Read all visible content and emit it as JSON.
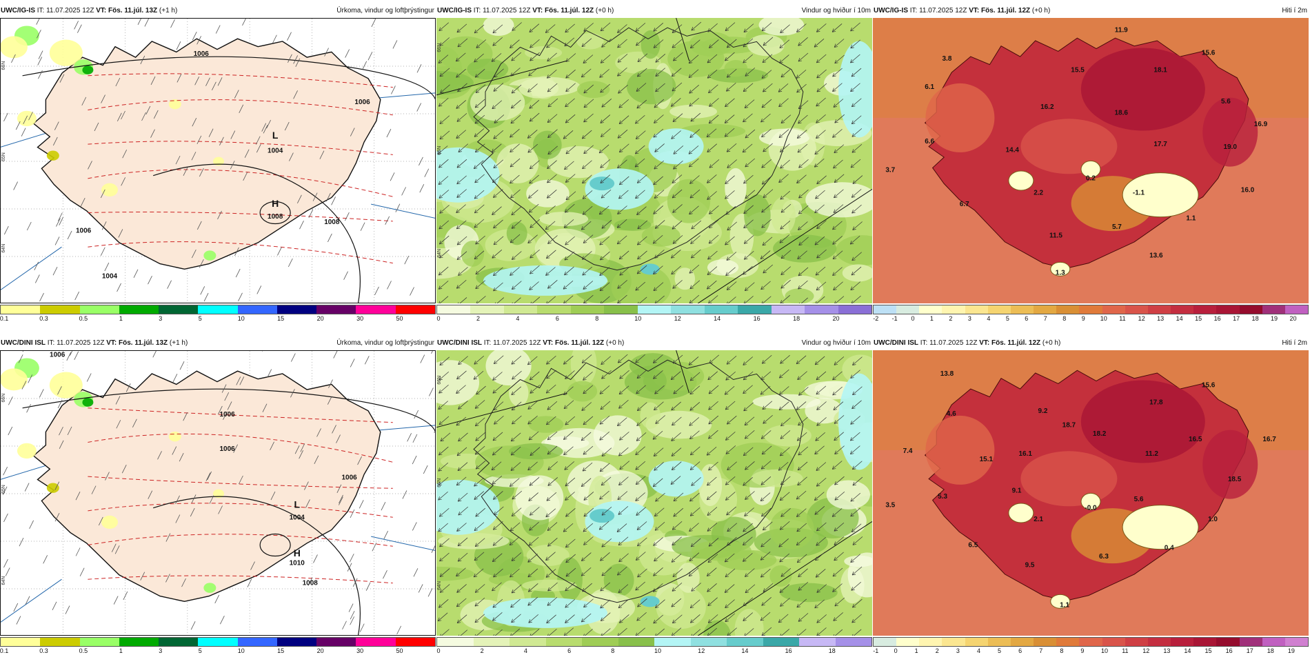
{
  "panels": [
    {
      "row": 0,
      "col": 0,
      "model": "UWC/IG-IS",
      "it": "IT: 11.07.2025 12Z",
      "vt": "VT: Fös. 11.júl. 13Z",
      "lead": "(+1 h)",
      "title": "Úrkoma, vindur og loftþrýstingur",
      "type": "precip",
      "lat_labels": [
        "66N",
        "65N",
        "64N"
      ],
      "map_labels": [
        {
          "text": "L"
        },
        {
          "text": "1004"
        },
        {
          "text": "H"
        },
        {
          "text": "1008"
        },
        {
          "text": "1006"
        },
        {
          "text": "1006"
        },
        {
          "text": "1006"
        },
        {
          "text": "1004"
        },
        {
          "text": "1008"
        }
      ],
      "colorbar": {
        "colors": [
          "#ffff99",
          "#cccc00",
          "#99ff66",
          "#00aa00",
          "#006633",
          "#00ffff",
          "#3366ff",
          "#000080",
          "#660066",
          "#ff0099",
          "#ff0000"
        ],
        "ticks": [
          "0.1",
          "0.3",
          "0.5",
          "1",
          "3",
          "5",
          "10",
          "15",
          "20",
          "30",
          "50"
        ]
      }
    },
    {
      "row": 0,
      "col": 1,
      "model": "UWC/IG-IS",
      "it": "IT: 11.07.2025 12Z",
      "vt": "VT: Fös. 11.júl. 12Z",
      "lead": "(+0 h)",
      "title": "Vindur og hviður í 10m",
      "type": "wind",
      "lat_labels": [
        "66N",
        "65N",
        "64N"
      ],
      "colorbar": {
        "colors": [
          "#f5fbe0",
          "#e4f3b8",
          "#d0e993",
          "#b8dc6e",
          "#9fcd55",
          "#88c04a",
          "#b3f5f5",
          "#8fe0e0",
          "#66cccc",
          "#3aa8a8",
          "#c7b8f5",
          "#a590e8",
          "#8a6fd6"
        ],
        "ticks": [
          "0",
          "2",
          "4",
          "6",
          "8",
          "10",
          "12",
          "14",
          "16",
          "18",
          "20"
        ]
      }
    },
    {
      "row": 0,
      "col": 2,
      "model": "UWC/IG-IS",
      "it": "IT: 11.07.2025 12Z",
      "vt": "VT: Fös. 11.júl. 12Z",
      "lead": "(+0 h)",
      "title": "Hiti í 2m",
      "type": "temp",
      "map_labels": [
        {
          "text": "11.9"
        },
        {
          "text": "3.8"
        },
        {
          "text": "15.5"
        },
        {
          "text": "15.6"
        },
        {
          "text": "6.1"
        },
        {
          "text": "18.1"
        },
        {
          "text": "16.2"
        },
        {
          "text": "18.6"
        },
        {
          "text": "5.6"
        },
        {
          "text": "16.9"
        },
        {
          "text": "6.6"
        },
        {
          "text": "14.4"
        },
        {
          "text": "17.7"
        },
        {
          "text": "19.0"
        },
        {
          "text": "3.7"
        },
        {
          "text": "0.2"
        },
        {
          "text": "16.0"
        },
        {
          "text": "2.2"
        },
        {
          "text": "-1.1"
        },
        {
          "text": "6.7"
        },
        {
          "text": "1.1"
        },
        {
          "text": "5.7"
        },
        {
          "text": "11.5"
        },
        {
          "text": "13.6"
        },
        {
          "text": "1.3"
        }
      ],
      "colorbar": {
        "colors": [
          "#bde0f5",
          "#d8ece0",
          "#ffffcc",
          "#fff5b0",
          "#fbe690",
          "#f5d470",
          "#ecbd55",
          "#e3a842",
          "#d98f35",
          "#e07a3a",
          "#e0664a",
          "#d9544a",
          "#cf3f44",
          "#c42e40",
          "#b81f3c",
          "#a91535",
          "#950c2d",
          "#a0307a",
          "#c060c0"
        ],
        "ticks": [
          "-2",
          "-1",
          "0",
          "1",
          "2",
          "3",
          "4",
          "5",
          "6",
          "7",
          "8",
          "9",
          "10",
          "11",
          "12",
          "13",
          "14",
          "15",
          "16",
          "17",
          "18",
          "19",
          "20"
        ]
      }
    },
    {
      "row": 1,
      "col": 0,
      "model": "UWC/DINI ISL",
      "it": "IT: 11.07.2025 12Z",
      "vt": "VT: Fös. 11.júl. 13Z",
      "lead": "(+1 h)",
      "title": "Úrkoma, vindur og loftþrýstingur",
      "type": "precip",
      "lat_labels": [
        "66N",
        "65N",
        "64N"
      ],
      "map_labels": [
        {
          "text": "L"
        },
        {
          "text": "1004"
        },
        {
          "text": "H"
        },
        {
          "text": "1010"
        },
        {
          "text": "1006"
        },
        {
          "text": "1006"
        },
        {
          "text": "1006"
        },
        {
          "text": "1006"
        },
        {
          "text": "1008"
        }
      ],
      "colorbar": {
        "colors": [
          "#ffff99",
          "#cccc00",
          "#99ff66",
          "#00aa00",
          "#006633",
          "#00ffff",
          "#3366ff",
          "#000080",
          "#660066",
          "#ff0099",
          "#ff0000"
        ],
        "ticks": [
          "0.1",
          "0.3",
          "0.5",
          "1",
          "3",
          "5",
          "10",
          "15",
          "20",
          "30",
          "50"
        ]
      }
    },
    {
      "row": 1,
      "col": 1,
      "model": "UWC/DINI ISL",
      "it": "IT: 11.07.2025 12Z",
      "vt": "VT: Fös. 11.júl. 12Z",
      "lead": "(+0 h)",
      "title": "Vindur og hviður í 10m",
      "type": "wind",
      "lat_labels": [
        "66N",
        "65N",
        "64N"
      ],
      "colorbar": {
        "colors": [
          "#f5fbe0",
          "#e4f3b8",
          "#d0e993",
          "#b8dc6e",
          "#9fcd55",
          "#88c04a",
          "#b3f5f5",
          "#8fe0e0",
          "#66cccc",
          "#3aa8a8",
          "#c7b8f5",
          "#a590e8"
        ],
        "ticks": [
          "0",
          "2",
          "4",
          "6",
          "8",
          "10",
          "12",
          "14",
          "16",
          "18"
        ]
      }
    },
    {
      "row": 1,
      "col": 2,
      "model": "UWC/DINI ISL",
      "it": "IT: 11.07.2025 12Z",
      "vt": "VT: Fös. 11.júl. 12Z",
      "lead": "(+0 h)",
      "title": "Hiti í 2m",
      "type": "temp",
      "map_labels": [
        {
          "text": "13.8"
        },
        {
          "text": "15.6"
        },
        {
          "text": "17.8"
        },
        {
          "text": "4.6"
        },
        {
          "text": "9.2"
        },
        {
          "text": "18.7"
        },
        {
          "text": "18.2"
        },
        {
          "text": "16.5"
        },
        {
          "text": "16.7"
        },
        {
          "text": "7.4"
        },
        {
          "text": "15.1"
        },
        {
          "text": "16.1"
        },
        {
          "text": "11.2"
        },
        {
          "text": "18.5"
        },
        {
          "text": "5.3"
        },
        {
          "text": "9.1"
        },
        {
          "text": "5.6"
        },
        {
          "text": "3.5"
        },
        {
          "text": "-0.0"
        },
        {
          "text": "2.1"
        },
        {
          "text": "1.0"
        },
        {
          "text": "6.5"
        },
        {
          "text": "6.3"
        },
        {
          "text": "0.4"
        },
        {
          "text": "9.5"
        },
        {
          "text": "1.1"
        }
      ],
      "colorbar": {
        "colors": [
          "#d8ece0",
          "#ffffcc",
          "#fff5b0",
          "#fbe690",
          "#f5d470",
          "#ecbd55",
          "#e3a842",
          "#d98f35",
          "#e07a3a",
          "#e0664a",
          "#d9544a",
          "#cf3f44",
          "#c42e40",
          "#b81f3c",
          "#a91535",
          "#950c2d",
          "#a0307a",
          "#c060c0",
          "#d080d0"
        ],
        "ticks": [
          "-1",
          "0",
          "1",
          "2",
          "3",
          "4",
          "5",
          "6",
          "7",
          "8",
          "9",
          "10",
          "11",
          "12",
          "13",
          "14",
          "15",
          "16",
          "17",
          "18",
          "19"
        ]
      }
    }
  ]
}
